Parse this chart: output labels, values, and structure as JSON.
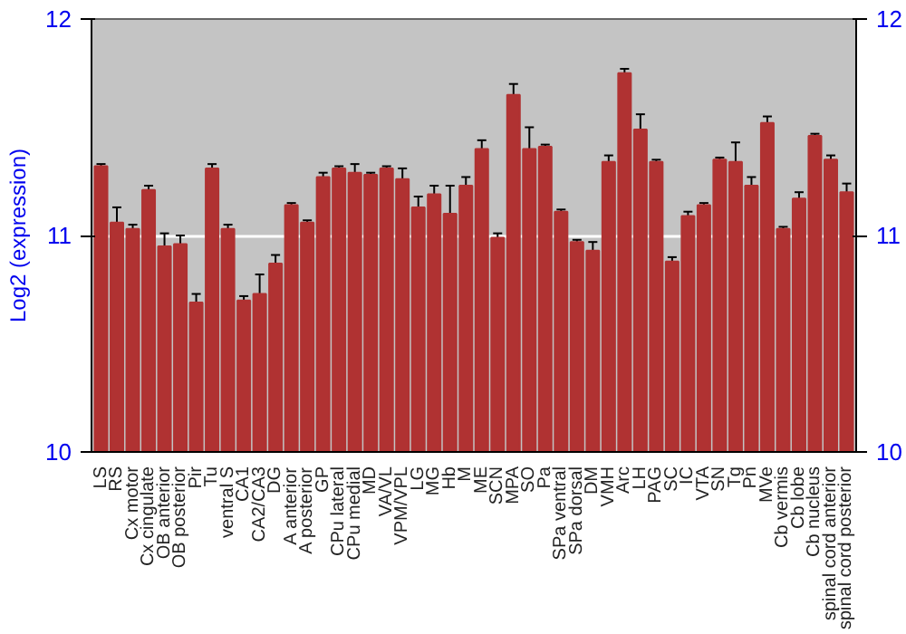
{
  "chart_data": {
    "type": "bar",
    "ylabel": "Log2 (expression)",
    "categories": [
      "LS",
      "RS",
      "Cx motor",
      "Cx cingulate",
      "OB anterior",
      "OB posterior",
      "Pir",
      "Tu",
      "ventral S",
      "CA1",
      "CA2/CA3",
      "DG",
      "A anterior",
      "A posterior",
      "GP",
      "CPu lateral",
      "CPu medial",
      "MD",
      "VA/VL",
      "VPM/VPL",
      "LG",
      "MG",
      "Hb",
      "M",
      "ME",
      "SCN",
      "MPA",
      "SO",
      "Pa",
      "SPa ventral",
      "SPa dorsal",
      "DM",
      "VMH",
      "Arc",
      "LH",
      "PAG",
      "SC",
      "IC",
      "VTA",
      "SN",
      "Tg",
      "Pn",
      "MVe",
      "Cb vermis",
      "Cb lobe",
      "Cb nucleus",
      "spinal cord anterior",
      "spinal cord posterior"
    ],
    "values": [
      11.32,
      11.06,
      11.03,
      11.21,
      10.95,
      10.96,
      10.69,
      11.31,
      11.03,
      10.7,
      10.73,
      10.87,
      11.14,
      11.06,
      11.27,
      11.31,
      11.29,
      11.28,
      11.31,
      11.26,
      11.13,
      11.19,
      11.1,
      11.23,
      11.4,
      10.99,
      11.65,
      11.4,
      11.41,
      11.11,
      10.97,
      10.93,
      11.34,
      11.75,
      11.49,
      11.34,
      10.88,
      11.09,
      11.14,
      11.35,
      11.34,
      11.23,
      11.52,
      11.03,
      11.17,
      11.46,
      11.35,
      11.2
    ],
    "errors": [
      0.01,
      0.07,
      0.02,
      0.02,
      0.06,
      0.04,
      0.04,
      0.02,
      0.02,
      0.02,
      0.09,
      0.04,
      0.01,
      0.01,
      0.02,
      0.01,
      0.04,
      0.01,
      0.01,
      0.05,
      0.05,
      0.04,
      0.13,
      0.04,
      0.04,
      0.02,
      0.05,
      0.1,
      0.01,
      0.01,
      0.01,
      0.04,
      0.03,
      0.02,
      0.07,
      0.01,
      0.02,
      0.02,
      0.01,
      0.01,
      0.09,
      0.04,
      0.03,
      0.01,
      0.03,
      0.01,
      0.02,
      0.04
    ],
    "color": "#b03232",
    "ylim": [
      10,
      12
    ],
    "yticks": [
      10,
      11,
      12
    ],
    "y2lim": [
      10,
      12
    ],
    "y2ticks": [
      10,
      11,
      12
    ],
    "grid": "y"
  }
}
